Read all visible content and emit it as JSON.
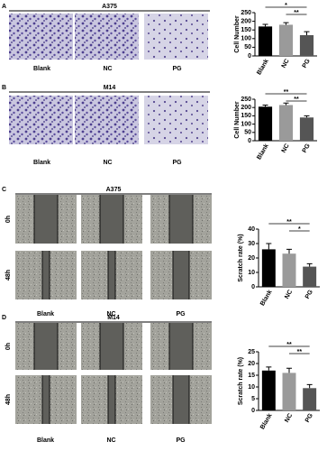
{
  "panels": [
    {
      "letter": "A",
      "title": "A375",
      "labels": [
        "Blank",
        "NC",
        "PG"
      ]
    },
    {
      "letter": "B",
      "title": "M14",
      "labels": [
        "Blank",
        "NC",
        "PG"
      ]
    },
    {
      "letter": "C",
      "title": "A375",
      "rows": [
        "0h",
        "48h"
      ],
      "labels": [
        "Blank",
        "NC",
        "PG"
      ]
    },
    {
      "letter": "D",
      "title": "M14",
      "rows": [
        "0h",
        "48h"
      ],
      "labels": [
        "Blank",
        "NC",
        "PG"
      ]
    }
  ],
  "chart_data": [
    {
      "type": "bar",
      "y_label": "Cell Number",
      "categories": [
        "Blank",
        "NC",
        "PG"
      ],
      "values": [
        170,
        180,
        120
      ],
      "errors": [
        12,
        12,
        20
      ],
      "colors": [
        "#000000",
        "#9a9a9a",
        "#555555"
      ],
      "ylim": [
        0,
        250
      ],
      "yticks": [
        0,
        50,
        100,
        150,
        200,
        250
      ],
      "annotations": [
        "*",
        "**"
      ]
    },
    {
      "type": "bar",
      "y_label": "Cell Number",
      "categories": [
        "Blank",
        "NC",
        "PG"
      ],
      "values": [
        205,
        215,
        140
      ],
      "errors": [
        10,
        12,
        10
      ],
      "colors": [
        "#000000",
        "#9a9a9a",
        "#555555"
      ],
      "ylim": [
        0,
        250
      ],
      "yticks": [
        0,
        50,
        100,
        150,
        200,
        250
      ],
      "annotations": [
        "**",
        "**"
      ]
    },
    {
      "type": "bar",
      "y_label": "Scratch rate (%)",
      "categories": [
        "Blank",
        "NC",
        "PG"
      ],
      "values": [
        26,
        23,
        14
      ],
      "errors": [
        4,
        3,
        2
      ],
      "colors": [
        "#000000",
        "#9a9a9a",
        "#555555"
      ],
      "ylim": [
        0,
        40
      ],
      "yticks": [
        0,
        10,
        20,
        30,
        40
      ],
      "annotations": [
        "**",
        "*"
      ]
    },
    {
      "type": "bar",
      "y_label": "Scratch rate (%)",
      "categories": [
        "Blank",
        "NC",
        "PG"
      ],
      "values": [
        17,
        16,
        9.5
      ],
      "errors": [
        1.5,
        2,
        1.5
      ],
      "colors": [
        "#000000",
        "#9a9a9a",
        "#555555"
      ],
      "ylim": [
        0,
        25
      ],
      "yticks": [
        0,
        5,
        10,
        15,
        20,
        25
      ],
      "annotations": [
        "**",
        "**"
      ]
    }
  ]
}
